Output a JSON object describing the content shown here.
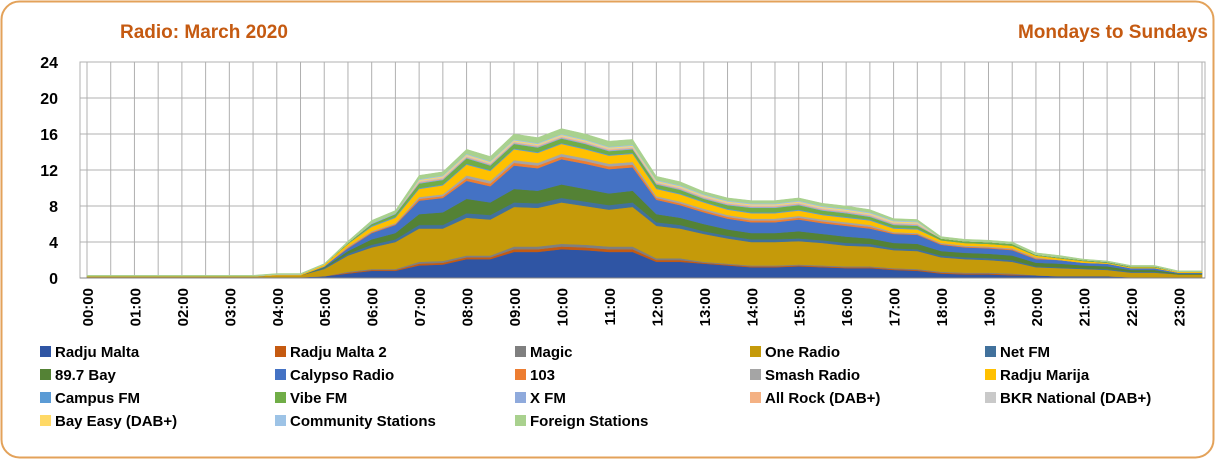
{
  "chart_data": {
    "type": "stacked_area",
    "title": "Radio: March 2020",
    "subtitle": "Mondays to Sundays",
    "categories": [
      "00:00",
      null,
      "01:00",
      null,
      "02:00",
      null,
      "03:00",
      null,
      "04:00",
      null,
      "05:00",
      null,
      "06:00",
      null,
      "07:00",
      null,
      "08:00",
      null,
      "09:00",
      null,
      "10:00",
      null,
      "11:00",
      null,
      "12:00",
      null,
      "13:00",
      null,
      "14:00",
      null,
      "15:00",
      null,
      "16:00",
      null,
      "17:00",
      null,
      "18:00",
      null,
      "19:00",
      null,
      "20:00",
      null,
      "21:00",
      null,
      "22:00",
      null,
      "23:00",
      null
    ],
    "ylim": [
      0,
      24
    ],
    "yticks": [
      0,
      4,
      8,
      12,
      16,
      20,
      24
    ],
    "grid": true,
    "legend": "bottom",
    "series": [
      {
        "name": "Radju Malta",
        "color": "#2f55a4",
        "values": [
          0.1,
          0.1,
          0.1,
          0.1,
          0.1,
          0.1,
          0.1,
          0.1,
          0.1,
          0.1,
          0.2,
          0.5,
          0.8,
          0.8,
          1.4,
          1.5,
          2.1,
          2.1,
          2.9,
          2.9,
          3.2,
          3.1,
          2.9,
          2.9,
          1.8,
          1.8,
          1.6,
          1.4,
          1.2,
          1.2,
          1.3,
          1.2,
          1.1,
          1.1,
          0.9,
          0.8,
          0.5,
          0.4,
          0.4,
          0.3,
          0.3,
          0.2,
          0.2,
          0.2,
          0.1,
          0.1,
          0.1,
          0.1
        ]
      },
      {
        "name": "Radju Malta 2",
        "color": "#c55a11",
        "values": [
          0,
          0,
          0,
          0,
          0,
          0,
          0,
          0,
          0,
          0,
          0,
          0.1,
          0.1,
          0.1,
          0.2,
          0.2,
          0.2,
          0.2,
          0.3,
          0.3,
          0.3,
          0.3,
          0.3,
          0.3,
          0.2,
          0.2,
          0.1,
          0.1,
          0.1,
          0.1,
          0.1,
          0.1,
          0.1,
          0.1,
          0.1,
          0.1,
          0.1,
          0.1,
          0.1,
          0.1,
          0,
          0,
          0,
          0,
          0,
          0,
          0,
          0
        ]
      },
      {
        "name": "Magic",
        "color": "#7f7f7f",
        "values": [
          0,
          0,
          0,
          0,
          0,
          0,
          0,
          0,
          0,
          0,
          0,
          0.1,
          0.1,
          0.1,
          0.2,
          0.2,
          0.2,
          0.2,
          0.3,
          0.3,
          0.3,
          0.3,
          0.3,
          0.3,
          0.2,
          0.2,
          0.1,
          0.1,
          0.1,
          0.1,
          0.1,
          0.1,
          0.1,
          0.1,
          0.1,
          0.1,
          0.1,
          0.1,
          0.1,
          0.1,
          0,
          0,
          0,
          0,
          0,
          0,
          0,
          0
        ]
      },
      {
        "name": "One Radio",
        "color": "#c59a0a",
        "values": [
          0.1,
          0.1,
          0.1,
          0.1,
          0.1,
          0.1,
          0.1,
          0.1,
          0.2,
          0.2,
          0.8,
          1.8,
          2.4,
          3.0,
          3.7,
          3.6,
          4.2,
          4.0,
          4.4,
          4.3,
          4.6,
          4.3,
          4.1,
          4.4,
          3.6,
          3.3,
          3.1,
          2.8,
          2.6,
          2.6,
          2.6,
          2.5,
          2.3,
          2.2,
          2.0,
          2.0,
          1.6,
          1.5,
          1.4,
          1.3,
          0.9,
          0.9,
          0.8,
          0.7,
          0.5,
          0.5,
          0.3,
          0.3
        ]
      },
      {
        "name": "Net FM",
        "color": "#41719c",
        "values": [
          0,
          0,
          0,
          0,
          0,
          0,
          0,
          0,
          0,
          0,
          0.1,
          0.2,
          0.3,
          0.3,
          0.4,
          0.4,
          0.5,
          0.5,
          0.5,
          0.5,
          0.5,
          0.5,
          0.5,
          0.5,
          0.4,
          0.4,
          0.3,
          0.3,
          0.3,
          0.3,
          0.3,
          0.3,
          0.3,
          0.3,
          0.2,
          0.2,
          0.2,
          0.2,
          0.2,
          0.2,
          0.1,
          0.1,
          0.1,
          0.1,
          0.1,
          0.1,
          0,
          0
        ]
      },
      {
        "name": "89.7 Bay",
        "color": "#548235",
        "values": [
          0,
          0,
          0,
          0,
          0,
          0,
          0,
          0,
          0,
          0,
          0.1,
          0.3,
          0.6,
          0.7,
          1.2,
          1.4,
          1.6,
          1.4,
          1.5,
          1.4,
          1.5,
          1.4,
          1.3,
          1.3,
          0.9,
          0.8,
          0.8,
          0.7,
          0.7,
          0.7,
          0.8,
          0.7,
          0.7,
          0.6,
          0.6,
          0.6,
          0.5,
          0.5,
          0.5,
          0.5,
          0.4,
          0.4,
          0.3,
          0.3,
          0.2,
          0.2,
          0.1,
          0.1
        ]
      },
      {
        "name": "Calypso Radio",
        "color": "#4472c4",
        "values": [
          0,
          0,
          0,
          0,
          0,
          0,
          0,
          0,
          0,
          0,
          0.1,
          0.3,
          0.7,
          0.9,
          1.5,
          1.6,
          2.0,
          1.8,
          2.6,
          2.5,
          2.8,
          2.8,
          2.7,
          2.6,
          1.6,
          1.4,
          1.3,
          1.2,
          1.2,
          1.2,
          1.3,
          1.2,
          1.2,
          1.1,
          1.0,
          1.0,
          0.7,
          0.6,
          0.6,
          0.6,
          0.4,
          0.4,
          0.3,
          0.3,
          0.2,
          0.2,
          0.1,
          0.1
        ]
      },
      {
        "name": "103",
        "color": "#ed7d31",
        "values": [
          0,
          0,
          0,
          0,
          0,
          0,
          0,
          0,
          0,
          0,
          0,
          0.1,
          0.1,
          0.1,
          0.2,
          0.2,
          0.3,
          0.3,
          0.3,
          0.3,
          0.3,
          0.3,
          0.3,
          0.3,
          0.2,
          0.2,
          0.2,
          0.2,
          0.2,
          0.2,
          0.2,
          0.2,
          0.2,
          0.2,
          0.1,
          0.1,
          0.1,
          0.1,
          0.1,
          0.1,
          0.1,
          0,
          0,
          0,
          0,
          0,
          0,
          0
        ]
      },
      {
        "name": "Smash Radio",
        "color": "#a5a5a5",
        "values": [
          0,
          0,
          0,
          0,
          0,
          0,
          0,
          0,
          0,
          0,
          0,
          0.1,
          0.1,
          0.1,
          0.2,
          0.2,
          0.3,
          0.3,
          0.3,
          0.3,
          0.3,
          0.3,
          0.3,
          0.3,
          0.2,
          0.2,
          0.2,
          0.2,
          0.2,
          0.2,
          0.2,
          0.2,
          0.2,
          0.2,
          0.1,
          0.1,
          0.1,
          0.1,
          0.1,
          0.1,
          0.1,
          0,
          0,
          0,
          0,
          0,
          0,
          0
        ]
      },
      {
        "name": "Radju Marija",
        "color": "#ffc000",
        "values": [
          0,
          0,
          0,
          0,
          0,
          0,
          0,
          0,
          0.1,
          0.1,
          0.2,
          0.3,
          0.5,
          0.6,
          0.9,
          1.0,
          1.2,
          1.1,
          1.2,
          1.1,
          1.1,
          1.0,
          0.9,
          0.9,
          0.8,
          0.8,
          0.7,
          0.6,
          0.6,
          0.6,
          0.6,
          0.5,
          0.5,
          0.5,
          0.4,
          0.4,
          0.3,
          0.3,
          0.3,
          0.3,
          0.2,
          0.2,
          0.2,
          0.1,
          0.1,
          0.1,
          0.1,
          0.1
        ]
      },
      {
        "name": "Campus FM",
        "color": "#5b9bd5",
        "values": [
          0,
          0,
          0,
          0,
          0,
          0,
          0,
          0,
          0,
          0,
          0,
          0,
          0.1,
          0.1,
          0.1,
          0.1,
          0.1,
          0.1,
          0.1,
          0.1,
          0.1,
          0.1,
          0.1,
          0.1,
          0.1,
          0.1,
          0.1,
          0.1,
          0.1,
          0.1,
          0.1,
          0.1,
          0.1,
          0.1,
          0.1,
          0.1,
          0,
          0,
          0,
          0,
          0,
          0,
          0,
          0,
          0,
          0,
          0,
          0
        ]
      },
      {
        "name": "Vibe FM",
        "color": "#70ad47",
        "values": [
          0,
          0,
          0,
          0,
          0,
          0,
          0,
          0,
          0,
          0,
          0,
          0.1,
          0.2,
          0.3,
          0.5,
          0.5,
          0.6,
          0.5,
          0.5,
          0.5,
          0.5,
          0.5,
          0.4,
          0.4,
          0.4,
          0.4,
          0.3,
          0.4,
          0.5,
          0.5,
          0.5,
          0.4,
          0.4,
          0.3,
          0.3,
          0.3,
          0.2,
          0.2,
          0.2,
          0.2,
          0.1,
          0.1,
          0.1,
          0.1,
          0.1,
          0.1,
          0,
          0
        ]
      },
      {
        "name": "X FM",
        "color": "#8faadc",
        "values": [
          0,
          0,
          0,
          0,
          0,
          0,
          0,
          0,
          0,
          0,
          0,
          0,
          0.1,
          0.1,
          0.1,
          0.1,
          0.1,
          0.1,
          0.1,
          0.1,
          0.1,
          0.1,
          0.1,
          0.1,
          0.1,
          0.1,
          0.1,
          0.1,
          0.1,
          0.1,
          0.1,
          0.1,
          0.1,
          0.1,
          0.1,
          0.1,
          0,
          0,
          0,
          0,
          0,
          0,
          0,
          0,
          0,
          0,
          0,
          0
        ]
      },
      {
        "name": "All Rock (DAB+)",
        "color": "#f4b183",
        "values": [
          0,
          0,
          0,
          0,
          0,
          0,
          0,
          0,
          0,
          0,
          0,
          0,
          0,
          0,
          0.1,
          0.1,
          0.1,
          0.1,
          0.1,
          0.1,
          0.1,
          0.1,
          0.1,
          0.1,
          0.1,
          0.1,
          0.1,
          0.1,
          0.1,
          0.1,
          0.1,
          0.1,
          0.1,
          0.1,
          0.1,
          0.1,
          0,
          0,
          0,
          0,
          0,
          0,
          0,
          0,
          0,
          0,
          0,
          0
        ]
      },
      {
        "name": "BKR National (DAB+)",
        "color": "#c9c9c9",
        "values": [
          0,
          0,
          0,
          0,
          0,
          0,
          0,
          0,
          0,
          0,
          0,
          0,
          0,
          0,
          0.1,
          0.1,
          0.1,
          0.1,
          0.1,
          0.1,
          0.1,
          0.1,
          0.1,
          0.1,
          0.1,
          0.1,
          0.1,
          0.1,
          0.1,
          0.1,
          0.1,
          0.1,
          0.1,
          0.1,
          0.1,
          0.1,
          0,
          0,
          0,
          0,
          0,
          0,
          0,
          0,
          0,
          0,
          0,
          0
        ]
      },
      {
        "name": "Bay Easy (DAB+)",
        "color": "#ffd966",
        "values": [
          0,
          0,
          0,
          0,
          0,
          0,
          0,
          0,
          0,
          0,
          0,
          0,
          0,
          0,
          0.1,
          0.1,
          0.1,
          0.1,
          0.1,
          0.1,
          0.1,
          0.1,
          0.1,
          0.1,
          0.1,
          0.1,
          0.1,
          0.1,
          0.1,
          0.1,
          0.1,
          0.1,
          0.1,
          0.1,
          0.1,
          0.1,
          0,
          0,
          0,
          0,
          0,
          0,
          0,
          0,
          0,
          0,
          0,
          0
        ]
      },
      {
        "name": "Community Stations",
        "color": "#9dc3e6",
        "values": [
          0,
          0,
          0,
          0,
          0,
          0,
          0,
          0,
          0,
          0,
          0,
          0,
          0,
          0,
          0.1,
          0.1,
          0.1,
          0.1,
          0.1,
          0.1,
          0.1,
          0.1,
          0.1,
          0.1,
          0.1,
          0.1,
          0.1,
          0.1,
          0.1,
          0.1,
          0.1,
          0.1,
          0.1,
          0.1,
          0.1,
          0.1,
          0,
          0,
          0,
          0,
          0,
          0,
          0,
          0,
          0,
          0,
          0,
          0
        ]
      },
      {
        "name": "Foreign Stations",
        "color": "#a9d18e",
        "values": [
          0.1,
          0.1,
          0.1,
          0.1,
          0.1,
          0.1,
          0.1,
          0.1,
          0.1,
          0.1,
          0.1,
          0.2,
          0.3,
          0.3,
          0.4,
          0.4,
          0.5,
          0.5,
          0.6,
          0.6,
          0.6,
          0.6,
          0.6,
          0.6,
          0.4,
          0.4,
          0.3,
          0.3,
          0.3,
          0.3,
          0.3,
          0.3,
          0.3,
          0.3,
          0.2,
          0.2,
          0.2,
          0.2,
          0.2,
          0.2,
          0.2,
          0.2,
          0.1,
          0.1,
          0.1,
          0.1,
          0.1,
          0.1
        ]
      }
    ]
  }
}
